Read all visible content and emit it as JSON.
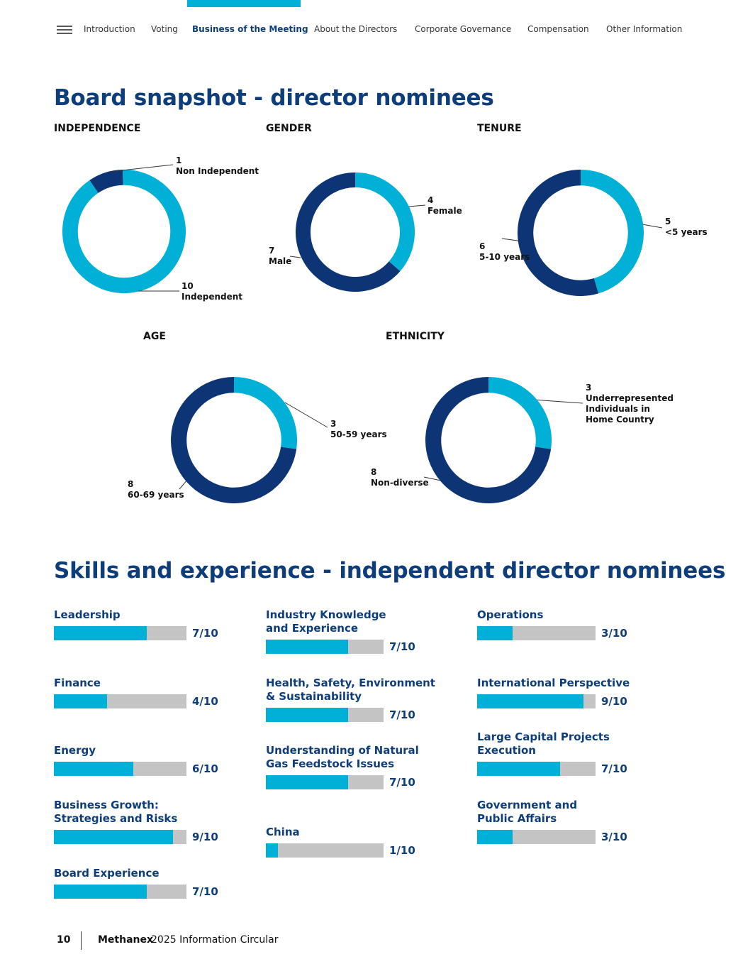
{
  "nav": {
    "items": [
      "Introduction",
      "Voting",
      "Business of the Meeting",
      "About the Directors",
      "Corporate Governance",
      "Compensation",
      "Other Information"
    ],
    "active": "Business of the Meeting"
  },
  "colors": {
    "light": "#00b0d6",
    "dark": "#0d3575",
    "track": "#c4c4c4",
    "heading": "#0d3d7a"
  },
  "board": {
    "title": "Board snapshot - director nominees",
    "independence": {
      "title": "INDEPENDENCE",
      "segments": [
        {
          "value": 1,
          "label": "Non Independent",
          "color": "dark"
        },
        {
          "value": 10,
          "label": "Independent",
          "color": "light"
        }
      ]
    },
    "gender": {
      "title": "GENDER",
      "segments": [
        {
          "value": 4,
          "label": "Female",
          "color": "light"
        },
        {
          "value": 7,
          "label": "Male",
          "color": "dark"
        }
      ]
    },
    "tenure": {
      "title": "TENURE",
      "segments": [
        {
          "value": 5,
          "label": "<5 years",
          "color": "light"
        },
        {
          "value": 6,
          "label": "5-10 years",
          "color": "dark"
        }
      ]
    },
    "age": {
      "title": "AGE",
      "segments": [
        {
          "value": 3,
          "label": "50-59 years",
          "color": "light"
        },
        {
          "value": 8,
          "label": "60-69 years",
          "color": "dark"
        }
      ]
    },
    "ethnicity": {
      "title": "ETHNICITY",
      "segments": [
        {
          "value": 3,
          "label_lines": [
            "Underrepresented",
            "Individuals in",
            "Home Country"
          ],
          "color": "light"
        },
        {
          "value": 8,
          "label": "Non-diverse",
          "color": "dark"
        }
      ]
    }
  },
  "skills": {
    "title": "Skills and experience - independent director nominees",
    "total": 10,
    "items": [
      {
        "label": "Leadership",
        "value": 7,
        "display": "7/10"
      },
      {
        "label": "Finance",
        "value": 4,
        "display": "4/10"
      },
      {
        "label": "Energy",
        "value": 6,
        "display": "6/10"
      },
      {
        "label": "Business Growth: Strategies and Risks",
        "value": 9,
        "display": "9/10"
      },
      {
        "label": "Board Experience",
        "value": 7,
        "display": "7/10"
      },
      {
        "label": "Industry Knowledge and Experience",
        "value": 7,
        "display": "7/10"
      },
      {
        "label": "Health, Safety, Environment & Sustainability",
        "value": 7,
        "display": "7/10"
      },
      {
        "label": "Understanding of Natural Gas Feedstock Issues",
        "value": 7,
        "display": "7/10"
      },
      {
        "label": "China",
        "value": 1,
        "display": "1/10"
      },
      {
        "label": "Operations",
        "value": 3,
        "display": "3/10"
      },
      {
        "label": "International Perspective",
        "value": 9,
        "display": "9/10"
      },
      {
        "label": "Large Capital Projects Execution",
        "value": 7,
        "display": "7/10"
      },
      {
        "label": "Government and Public Affairs",
        "value": 3,
        "display": "3/10"
      }
    ]
  },
  "footer": {
    "page": "10",
    "brand": "Methanex",
    "doc": "2025 Information Circular"
  }
}
